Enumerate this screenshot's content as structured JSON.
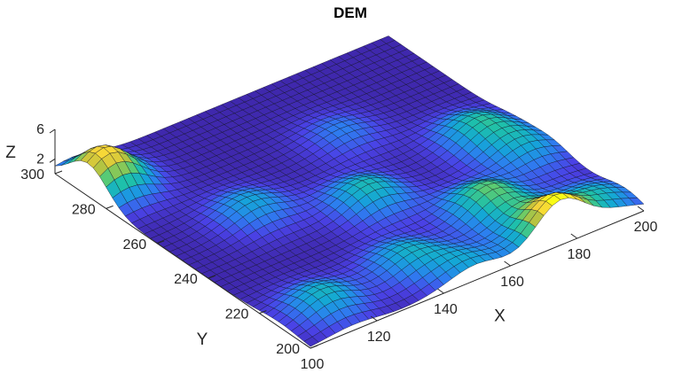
{
  "chart_data": {
    "type": "surface",
    "title": "DEM",
    "xlabel": "X",
    "ylabel": "Y",
    "zlabel": "Z",
    "xlim": [
      100,
      200
    ],
    "ylim": [
      200,
      300
    ],
    "zlim": [
      0,
      6
    ],
    "x_ticks": [
      100,
      120,
      140,
      160,
      180,
      200
    ],
    "y_ticks": [
      200,
      220,
      240,
      260,
      280,
      300
    ],
    "z_ticks": [
      2,
      6
    ],
    "grid_step": 2.5,
    "colormap": [
      "#3e26a8",
      "#4a42e6",
      "#2d7ef0",
      "#14a6d8",
      "#1ec0aa",
      "#63cc6b",
      "#c2c23b",
      "#f7d53a",
      "#f9fb15"
    ],
    "peaks": [
      {
        "x": 105,
        "y": 287,
        "height": 5.5
      },
      {
        "x": 125,
        "y": 256,
        "height": 2.2
      },
      {
        "x": 150,
        "y": 243,
        "height": 2.8
      },
      {
        "x": 113,
        "y": 212,
        "height": 2.6
      },
      {
        "x": 140,
        "y": 215,
        "height": 2.3
      },
      {
        "x": 188,
        "y": 250,
        "height": 2.7
      },
      {
        "x": 170,
        "y": 222,
        "height": 3.6
      },
      {
        "x": 175,
        "y": 201,
        "height": 6.0
      },
      {
        "x": 192,
        "y": 207,
        "height": 2.3
      },
      {
        "x": 192,
        "y": 236,
        "height": 2.1
      },
      {
        "x": 163,
        "y": 270,
        "height": 1.5
      },
      {
        "x": 150,
        "y": 202,
        "height": 2.0
      }
    ]
  }
}
